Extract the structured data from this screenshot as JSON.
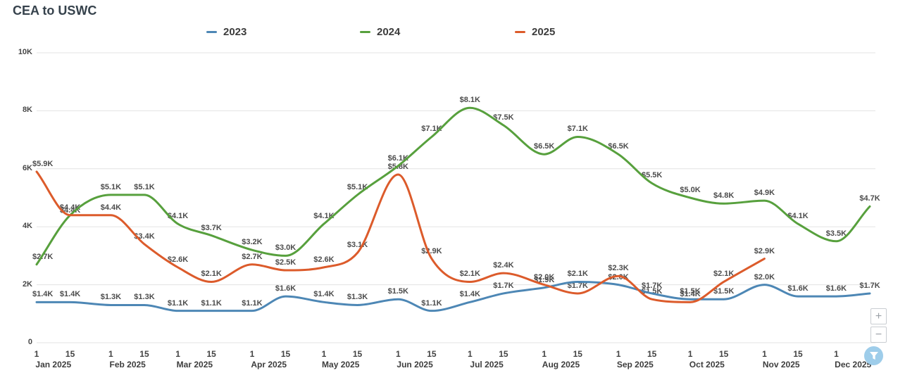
{
  "title": "CEA to USWC",
  "controls": {
    "zoom_in_label": "+",
    "zoom_out_label": "−",
    "filter_icon": "funnel-icon"
  },
  "chart_data": {
    "type": "line",
    "title": "CEA to USWC",
    "legend_position": "top",
    "grid": "horizontal",
    "value_label_format": "$#.#K",
    "ylim_k": [
      0,
      10
    ],
    "y_tick_labels": [
      "10K",
      "8K",
      "6K",
      "4K",
      "2K",
      "0"
    ],
    "x_tick_dates": [
      "Jan 1",
      "Jan 15",
      "Feb 1",
      "Feb 15",
      "Mar 1",
      "Mar 15",
      "Apr 1",
      "Apr 15",
      "May 1",
      "May 15",
      "Jun 1",
      "Jun 15",
      "Jul 1",
      "Jul 15",
      "Aug 1",
      "Aug 15",
      "Sep 1",
      "Sep 15",
      "Oct 1",
      "Oct 15",
      "Nov 1",
      "Nov 15",
      "Dec 1",
      "Dec 15"
    ],
    "x_day_offsets": [
      0,
      14,
      31,
      45,
      59,
      73,
      90,
      104,
      120,
      134,
      151,
      165,
      181,
      195,
      212,
      226,
      243,
      257,
      273,
      287,
      304,
      318,
      334,
      348
    ],
    "month_labels": [
      "Jan 2025",
      "Feb 2025",
      "Mar 2025",
      "Apr 2025",
      "May 2025",
      "Jun 2025",
      "Jul 2025",
      "Aug 2025",
      "Sep 2025",
      "Oct 2025",
      "Nov 2025",
      "Dec 2025"
    ],
    "series": [
      {
        "name": "2023",
        "color": "#4d87b5",
        "values_k": [
          1.4,
          1.4,
          1.3,
          1.3,
          1.1,
          1.1,
          1.1,
          1.6,
          1.4,
          1.3,
          1.5,
          1.1,
          1.4,
          1.7,
          1.9,
          2.1,
          2.0,
          1.7,
          1.5,
          1.5,
          2.0,
          1.6,
          1.6,
          1.7
        ]
      },
      {
        "name": "2024",
        "color": "#57a03d",
        "values_k": [
          2.7,
          4.4,
          5.1,
          5.1,
          4.1,
          3.7,
          3.2,
          3.0,
          4.1,
          5.1,
          6.1,
          7.1,
          8.1,
          7.5,
          6.5,
          7.1,
          6.5,
          5.5,
          5.0,
          4.8,
          4.9,
          4.1,
          3.5,
          4.7
        ]
      },
      {
        "name": "2025",
        "color": "#dc5b2b",
        "values_k": [
          5.9,
          4.4,
          4.4,
          3.4,
          2.6,
          2.1,
          2.7,
          2.5,
          2.6,
          3.1,
          5.8,
          2.9,
          2.1,
          2.4,
          2.0,
          1.7,
          2.3,
          1.5,
          1.4,
          2.1,
          2.9,
          null,
          null,
          null
        ]
      }
    ]
  }
}
